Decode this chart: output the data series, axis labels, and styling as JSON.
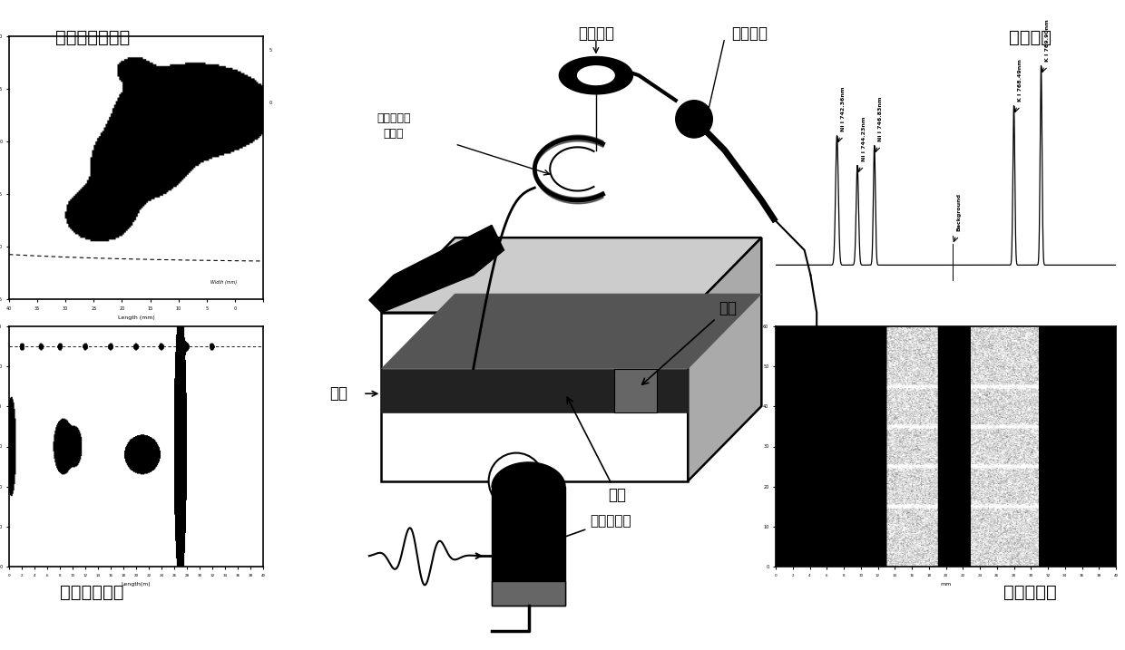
{
  "bg_color": "#ffffff",
  "labels": {
    "residual_stress": "残余应力分布图",
    "ultrasonic": "超声波探伤图",
    "spectral_signal": "光谱信号",
    "element_dist": "元素分布图",
    "pulsed_laser": "脉冲激光",
    "spectral_probe": "光谱探头",
    "laser_plasma": "激光透导等\n离子体",
    "sample": "样品",
    "defect": "缺陷",
    "weld": "焊缝",
    "ultrasonic_detector": "超声探测器"
  }
}
